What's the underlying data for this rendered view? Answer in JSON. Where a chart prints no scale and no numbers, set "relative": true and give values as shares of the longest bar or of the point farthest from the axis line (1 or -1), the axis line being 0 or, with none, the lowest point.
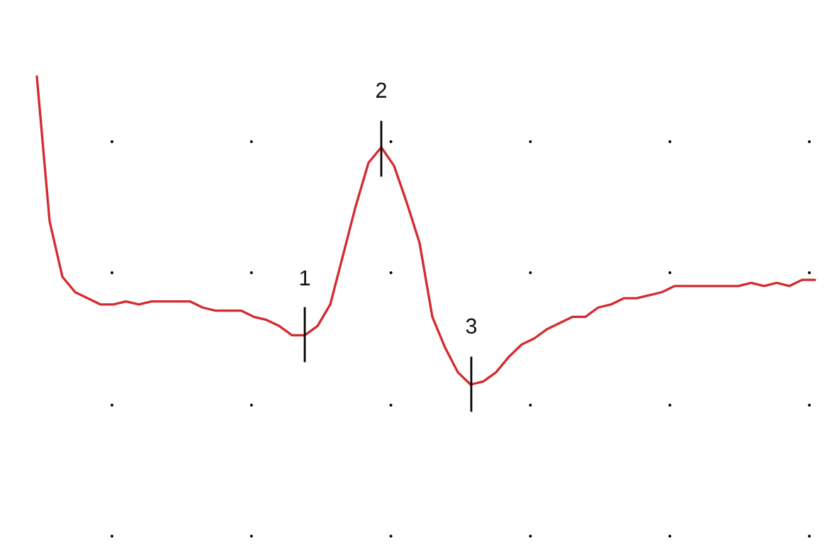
{
  "chart_data": {
    "type": "line",
    "relative": true,
    "marker": "none",
    "line_style": "solid",
    "categories": [
      null,
      null,
      null,
      null,
      null,
      null,
      null,
      null,
      null,
      null,
      null,
      null,
      null,
      null,
      null,
      null,
      null,
      null,
      null,
      null,
      null,
      null,
      null,
      null,
      null,
      null,
      null,
      null,
      null,
      null,
      null,
      null,
      null,
      null,
      null,
      null,
      null,
      null,
      null,
      null,
      null,
      null,
      null,
      null,
      null,
      null,
      null,
      null,
      null,
      null,
      null,
      null,
      null,
      null,
      null,
      null,
      null,
      null,
      null,
      null,
      null,
      null
    ],
    "series": [
      {
        "color": "#d42a2f",
        "values": [
          1.0,
          0.53,
          0.35,
          0.3,
          0.28,
          0.26,
          0.26,
          0.27,
          0.26,
          0.27,
          0.27,
          0.27,
          0.27,
          0.25,
          0.24,
          0.24,
          0.24,
          0.22,
          0.21,
          0.19,
          0.16,
          0.16,
          0.19,
          0.26,
          0.42,
          0.58,
          0.72,
          0.77,
          0.71,
          0.59,
          0.46,
          0.22,
          0.12,
          0.04,
          0.0,
          0.01,
          0.04,
          0.09,
          0.13,
          0.15,
          0.18,
          0.2,
          0.22,
          0.22,
          0.25,
          0.26,
          0.28,
          0.28,
          0.29,
          0.3,
          0.32,
          0.32,
          0.32,
          0.32,
          0.32,
          0.32,
          0.33,
          0.32,
          0.33,
          0.32,
          0.34,
          0.34
        ]
      }
    ],
    "annotations": [
      "1",
      "2",
      "3"
    ]
  }
}
